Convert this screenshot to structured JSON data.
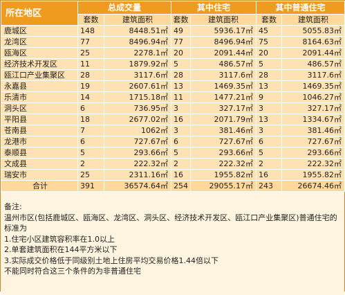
{
  "headers": {
    "region": "所在地区",
    "group_total": "总成交量",
    "group_residential": "其中住宅",
    "group_ordinary": "其中普通住宅",
    "col_count": "套数",
    "col_area": "建筑面积"
  },
  "rows": [
    {
      "name": "鹿城区",
      "t_count": "148",
      "t_area": "8448.51㎡",
      "r_count": "49",
      "r_area": "5936.17㎡",
      "o_count": "45",
      "o_area": "5055.83㎡"
    },
    {
      "name": "龙湾区",
      "t_count": "77",
      "t_area": "8496.94㎡",
      "r_count": "77",
      "r_area": "8496.94㎡",
      "o_count": "75",
      "o_area": "8164.63㎡"
    },
    {
      "name": "瓯海区",
      "t_count": "25",
      "t_area": "2278.1㎡",
      "r_count": "20",
      "r_area": "2091.44㎡",
      "o_count": "20",
      "o_area": "2091.44㎡"
    },
    {
      "name": "经济技术开发区",
      "t_count": "11",
      "t_area": "1879.92㎡",
      "r_count": "5",
      "r_area": "486.57㎡",
      "o_count": "5",
      "o_area": "486.57㎡"
    },
    {
      "name": "瓯江口产业集聚区",
      "t_count": "28",
      "t_area": "3117.6㎡",
      "r_count": "28",
      "r_area": "3117.6㎡",
      "o_count": "28",
      "o_area": "3117.6㎡"
    },
    {
      "name": "永嘉县",
      "t_count": "19",
      "t_area": "2607.61㎡",
      "r_count": "13",
      "r_area": "1469.35㎡",
      "o_count": "13",
      "o_area": "1469.35㎡"
    },
    {
      "name": "乐清市",
      "t_count": "14",
      "t_area": "1715.18㎡",
      "r_count": "11",
      "r_area": "1477.21㎡",
      "o_count": "9",
      "o_area": "1046.27㎡"
    },
    {
      "name": "洞头区",
      "t_count": "6",
      "t_area": "736.95㎡",
      "r_count": "3",
      "r_area": "327.17㎡",
      "o_count": "3",
      "o_area": "327.17㎡"
    },
    {
      "name": "平阳县",
      "t_count": "18",
      "t_area": "2677.02㎡",
      "r_count": "16",
      "r_area": "2071.79㎡",
      "o_count": "13",
      "o_area": "1334.67㎡"
    },
    {
      "name": "苍南县",
      "t_count": "7",
      "t_area": "1062㎡",
      "r_count": "3",
      "r_area": "381.46㎡",
      "o_count": "3",
      "o_area": "381.46㎡"
    },
    {
      "name": "龙港市",
      "t_count": "6",
      "t_area": "727.67㎡",
      "r_count": "6",
      "r_area": "727.67㎡",
      "o_count": "6",
      "o_area": "727.67㎡"
    },
    {
      "name": "泰顺县",
      "t_count": "5",
      "t_area": "293.66㎡",
      "r_count": "5",
      "r_area": "293.66㎡",
      "o_count": "5",
      "o_area": "293.66㎡"
    },
    {
      "name": "文成县",
      "t_count": "2",
      "t_area": "222.32㎡",
      "r_count": "2",
      "r_area": "222.32㎡",
      "o_count": "2",
      "o_area": "222.32㎡"
    },
    {
      "name": "瑞安市",
      "t_count": "25",
      "t_area": "2311.16㎡",
      "r_count": "16",
      "r_area": "1955.82㎡",
      "o_count": "16",
      "o_area": "1955.82㎡"
    }
  ],
  "total": {
    "name": "合计",
    "t_count": "391",
    "t_area": "36574.64㎡",
    "r_count": "254",
    "r_area": "29055.17㎡",
    "o_count": "243",
    "o_area": "26674.46㎡"
  },
  "notes": {
    "title": "备注:",
    "line1": "温州市区(包括鹿城区、瓯海区、龙湾区、洞头区、经济技术开发区、瓯江口产业集聚区)普通住宅的标准为",
    "item1": "1.住宅小区建筑容积率在1.0以上",
    "item2": "2.单套建筑面积在144平方米以下",
    "item3": "3.实际成交价格低于同级别土地上住房平均交易价格1.44倍以下",
    "item4": "不能同时符合这三个条件的为非普通住宅"
  }
}
